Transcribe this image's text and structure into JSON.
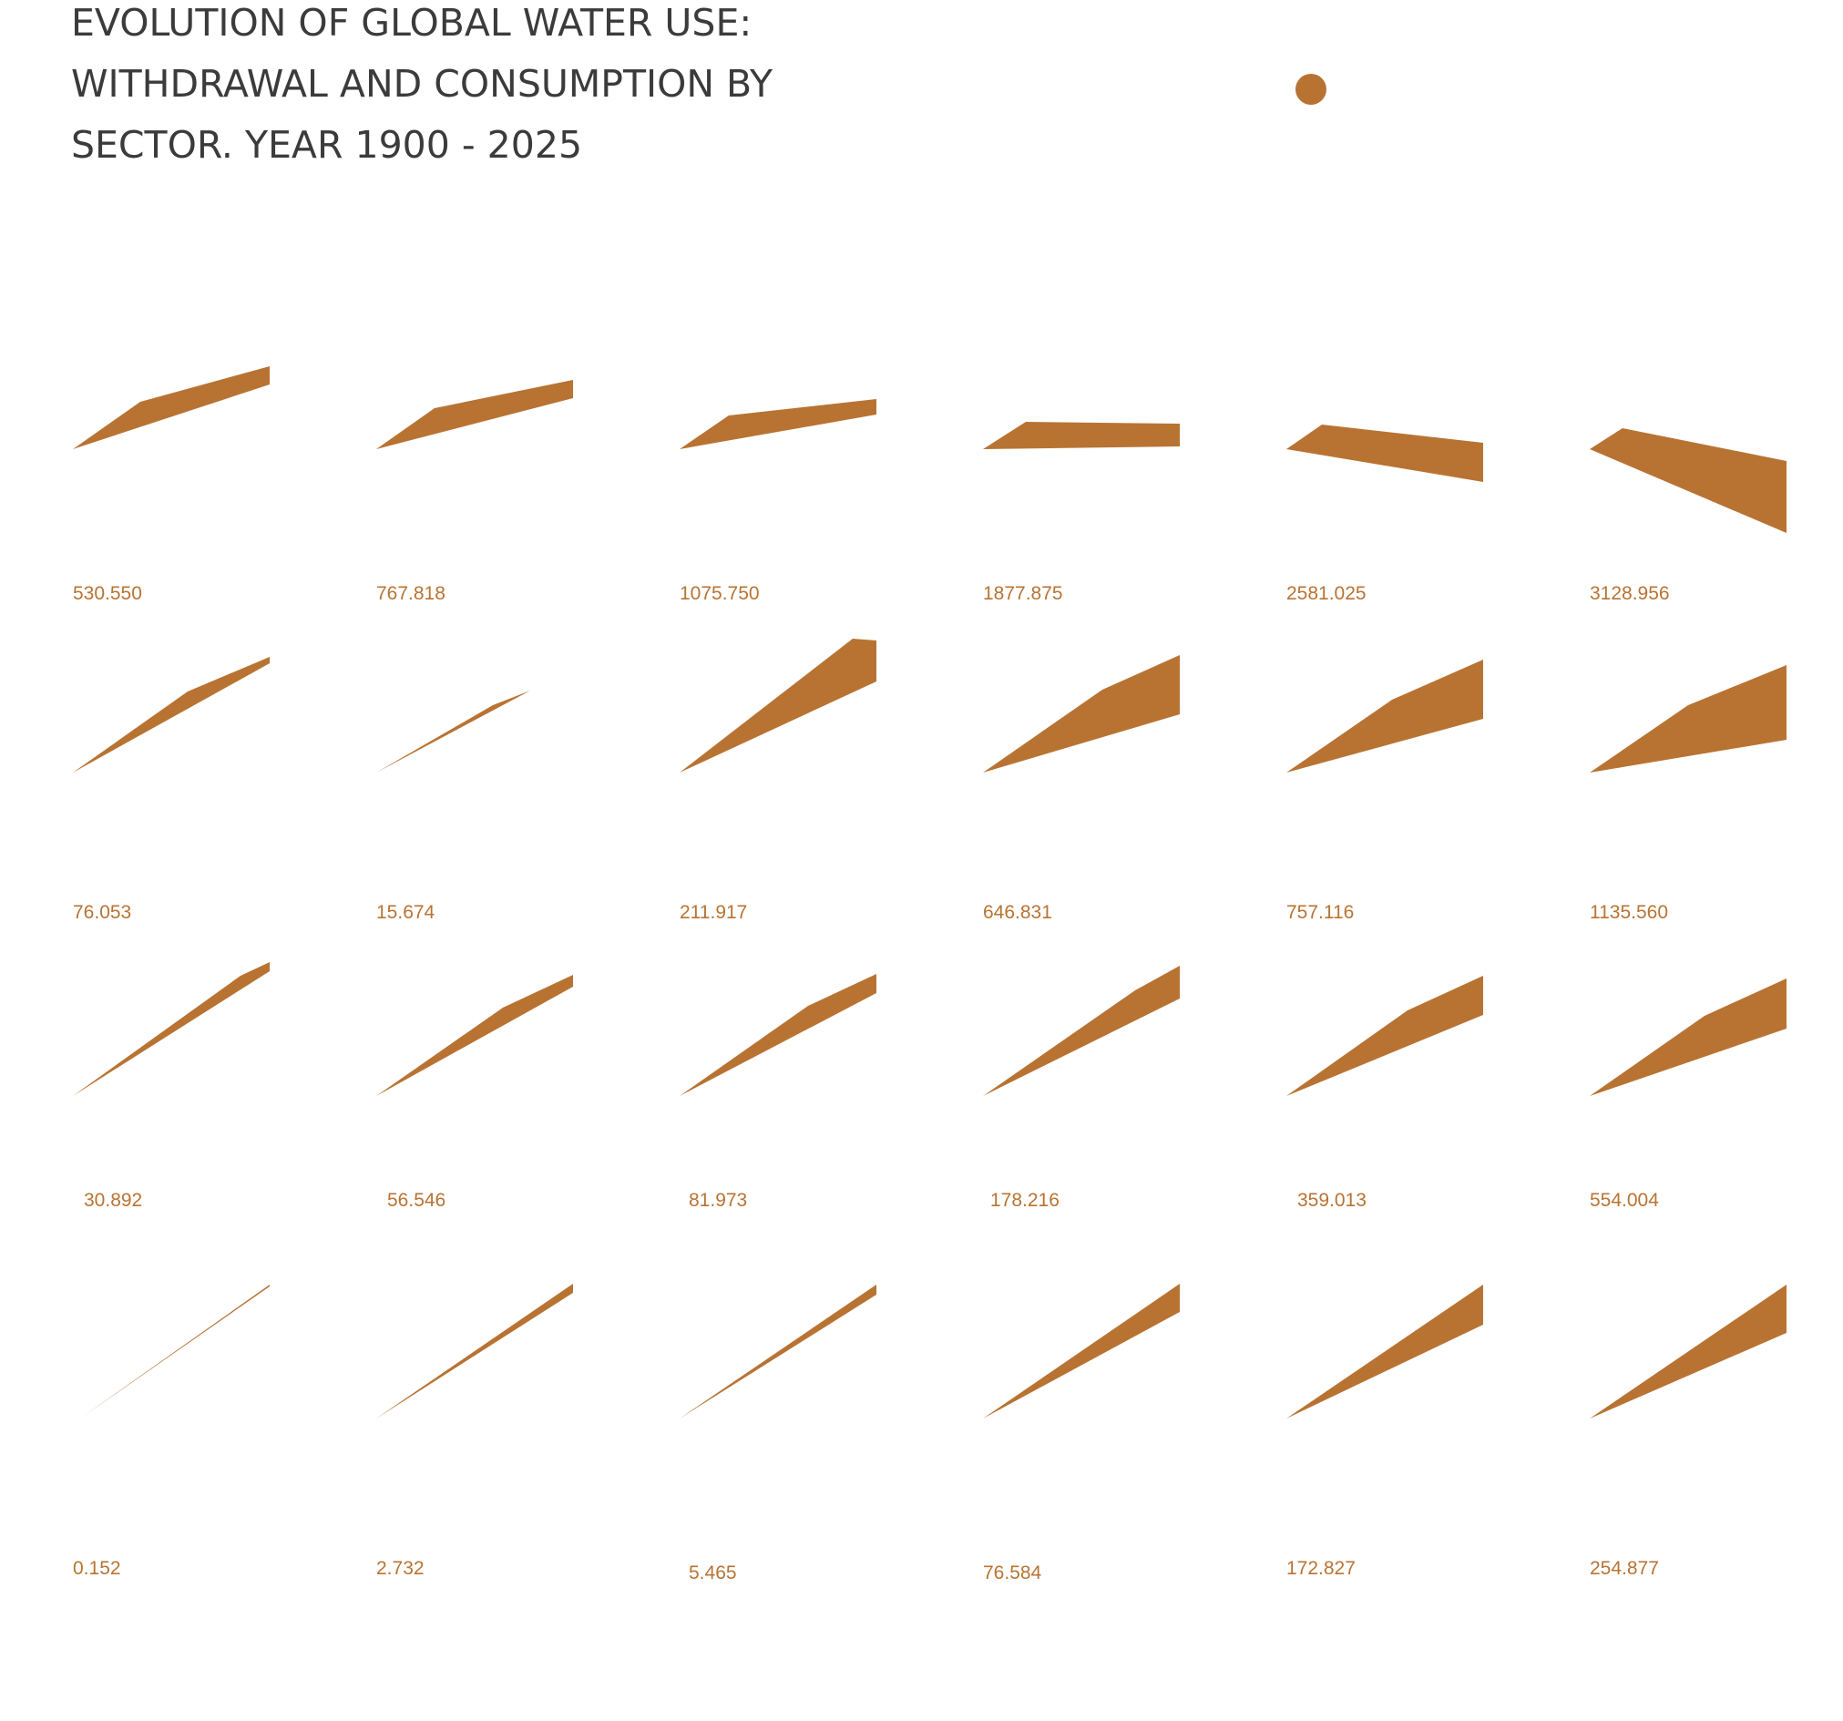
{
  "title": "EVOLUTION OF GLOBAL WATER USE: WITHDRAWAL AND CONSUMPTION BY SECTOR. YEAR 1900 - 2025",
  "colors": {
    "accent": "#b87333",
    "title": "#3b3b3b",
    "background": "#ffffff"
  },
  "legend": {
    "marker": "dot"
  },
  "chart_data": {
    "type": "area",
    "title": "EVOLUTION OF GLOBAL WATER USE: WITHDRAWAL AND CONSUMPTION BY SECTOR. YEAR 1900 - 2025",
    "layout": "small multiples grid: 4 rows x 6 columns",
    "rows": 4,
    "columns": 6,
    "grid": false,
    "panels": [
      {
        "row": 1,
        "col": 1,
        "label": "530.550"
      },
      {
        "row": 1,
        "col": 2,
        "label": "767.818"
      },
      {
        "row": 1,
        "col": 3,
        "label": "1075.750"
      },
      {
        "row": 1,
        "col": 4,
        "label": "1877.875"
      },
      {
        "row": 1,
        "col": 5,
        "label": "2581.025"
      },
      {
        "row": 1,
        "col": 6,
        "label": "3128.956"
      },
      {
        "row": 2,
        "col": 1,
        "label": "76.053"
      },
      {
        "row": 2,
        "col": 2,
        "label": "15.674"
      },
      {
        "row": 2,
        "col": 3,
        "label": "211.917"
      },
      {
        "row": 2,
        "col": 4,
        "label": "646.831"
      },
      {
        "row": 2,
        "col": 5,
        "label": "757.116"
      },
      {
        "row": 2,
        "col": 6,
        "label": "1135.560"
      },
      {
        "row": 3,
        "col": 1,
        "label": "30.892"
      },
      {
        "row": 3,
        "col": 2,
        "label": "56.546"
      },
      {
        "row": 3,
        "col": 3,
        "label": "81.973"
      },
      {
        "row": 3,
        "col": 4,
        "label": "178.216"
      },
      {
        "row": 3,
        "col": 5,
        "label": "359.013"
      },
      {
        "row": 3,
        "col": 6,
        "label": "554.004"
      },
      {
        "row": 4,
        "col": 1,
        "label": "0.152"
      },
      {
        "row": 4,
        "col": 2,
        "label": "2.732"
      },
      {
        "row": 4,
        "col": 3,
        "label": "5.465"
      },
      {
        "row": 4,
        "col": 4,
        "label": "76.584"
      },
      {
        "row": 4,
        "col": 5,
        "label": "172.827"
      },
      {
        "row": 4,
        "col": 6,
        "label": "254.877"
      }
    ]
  }
}
